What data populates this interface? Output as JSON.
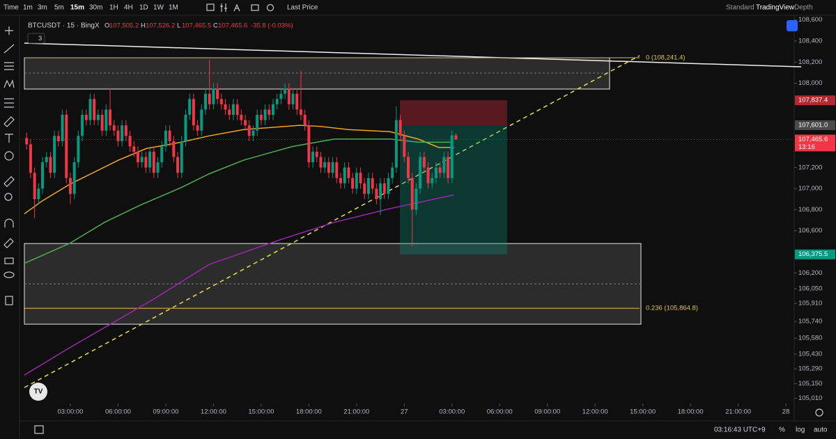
{
  "toolbar": {
    "time": "Time",
    "intervals": [
      "1m",
      "3m",
      "5m",
      "15m",
      "30m",
      "1H",
      "4H",
      "1D",
      "1W",
      "1M"
    ],
    "price_source": "Last Price",
    "right": [
      "Standard",
      "TradingView",
      "Depth"
    ]
  },
  "legend": {
    "symbol": "BTCUSDT · 15 · BingX",
    "ohlc": [
      {
        "key": "O",
        "value": "107,505.2"
      },
      {
        "key": "H",
        "value": "107,526.2"
      },
      {
        "key": "L",
        "value": "107,465.5"
      },
      {
        "key": "C",
        "value": "107,465.6"
      }
    ],
    "change": "-35.8 (-0.03%)",
    "indicator_count": "3"
  },
  "chart_data": {
    "type": "candlestick",
    "candles": [
      [
        107480,
        107530,
        107370,
        107420
      ],
      [
        107420,
        107470,
        107100,
        107150
      ],
      [
        107150,
        107200,
        106720,
        106900
      ],
      [
        106900,
        107050,
        106850,
        107000
      ],
      [
        107000,
        107300,
        106950,
        107250
      ],
      [
        107250,
        107350,
        107200,
        107300
      ],
      [
        107300,
        107350,
        107100,
        107150
      ],
      [
        107150,
        107550,
        107100,
        107500
      ],
      [
        107500,
        107550,
        107400,
        107450
      ],
      [
        107450,
        107750,
        107400,
        107700
      ],
      [
        107700,
        107750,
        107050,
        107100
      ],
      [
        107100,
        107150,
        106850,
        106950
      ],
      [
        106950,
        107300,
        106900,
        107250
      ],
      [
        107250,
        107550,
        107200,
        107500
      ],
      [
        107500,
        107750,
        107450,
        107700
      ],
      [
        107700,
        107750,
        107600,
        107650
      ],
      [
        107650,
        107900,
        107600,
        107850
      ],
      [
        107850,
        107900,
        107600,
        107650
      ],
      [
        107650,
        107750,
        107600,
        107700
      ],
      [
        107700,
        107750,
        107500,
        107550
      ],
      [
        107550,
        107800,
        107500,
        107750
      ],
      [
        107750,
        107950,
        107550,
        107600
      ],
      [
        107600,
        107650,
        107500,
        107550
      ],
      [
        107550,
        107600,
        107400,
        107450
      ],
      [
        107450,
        107650,
        107400,
        107600
      ],
      [
        107600,
        107650,
        107450,
        107500
      ],
      [
        107500,
        107550,
        107350,
        107400
      ],
      [
        107400,
        107450,
        107300,
        107350
      ],
      [
        107350,
        107400,
        107200,
        107250
      ],
      [
        107250,
        107350,
        107200,
        107300
      ],
      [
        107300,
        107350,
        107150,
        107200
      ],
      [
        107200,
        107400,
        107150,
        107350
      ],
      [
        107350,
        107400,
        107100,
        107150
      ],
      [
        107150,
        107300,
        107100,
        107250
      ],
      [
        107250,
        107450,
        107200,
        107400
      ],
      [
        107400,
        107600,
        107350,
        107550
      ],
      [
        107550,
        107600,
        107400,
        107450
      ],
      [
        107450,
        107500,
        107250,
        107300
      ],
      [
        107300,
        107350,
        107100,
        107150
      ],
      [
        107150,
        107500,
        107100,
        107450
      ],
      [
        107450,
        107750,
        107400,
        107700
      ],
      [
        107700,
        107900,
        107650,
        107850
      ],
      [
        107850,
        107900,
        107550,
        107600
      ],
      [
        107600,
        107650,
        107500,
        107550
      ],
      [
        107550,
        107800,
        107500,
        107750
      ],
      [
        107750,
        107950,
        107700,
        107900
      ],
      [
        107900,
        108220,
        107750,
        107800
      ],
      [
        107800,
        108000,
        107750,
        107950
      ],
      [
        107950,
        108000,
        107800,
        107850
      ],
      [
        107850,
        107900,
        107750,
        107800
      ],
      [
        107800,
        107850,
        107700,
        107750
      ],
      [
        107750,
        107800,
        107650,
        107700
      ],
      [
        107700,
        107850,
        107650,
        107800
      ],
      [
        107800,
        107850,
        107650,
        107700
      ],
      [
        107700,
        107750,
        107600,
        107650
      ],
      [
        107650,
        107700,
        107550,
        107600
      ],
      [
        107600,
        107650,
        107450,
        107500
      ],
      [
        107500,
        107600,
        107450,
        107550
      ],
      [
        107550,
        107750,
        107500,
        107700
      ],
      [
        107700,
        107750,
        107600,
        107650
      ],
      [
        107650,
        107800,
        107600,
        107750
      ],
      [
        107750,
        107800,
        107650,
        107700
      ],
      [
        107700,
        107850,
        107650,
        107800
      ],
      [
        107800,
        107900,
        107750,
        107850
      ],
      [
        107850,
        107950,
        107800,
        107900
      ],
      [
        107900,
        108000,
        107850,
        107950
      ],
      [
        107950,
        108000,
        107750,
        107800
      ],
      [
        107800,
        107950,
        107750,
        107900
      ],
      [
        107900,
        107950,
        107700,
        107750
      ],
      [
        107750,
        108120,
        107650,
        107700
      ],
      [
        107700,
        107750,
        107550,
        107600
      ],
      [
        107600,
        107650,
        107200,
        107250
      ],
      [
        107250,
        107400,
        107200,
        107350
      ],
      [
        107350,
        107400,
        107250,
        107300
      ],
      [
        107300,
        107350,
        107150,
        107200
      ],
      [
        107200,
        107300,
        107150,
        107250
      ],
      [
        107250,
        107300,
        107100,
        107150
      ],
      [
        107150,
        107300,
        107100,
        107250
      ],
      [
        107250,
        107300,
        107050,
        107100
      ],
      [
        107100,
        107150,
        107000,
        107050
      ],
      [
        107050,
        107250,
        107000,
        107200
      ],
      [
        107200,
        107250,
        107050,
        107100
      ],
      [
        107100,
        107150,
        106950,
        107000
      ],
      [
        107000,
        107200,
        106950,
        107150
      ],
      [
        107150,
        107200,
        107000,
        107050
      ],
      [
        107050,
        107100,
        106900,
        106950
      ],
      [
        106950,
        107150,
        106900,
        107100
      ],
      [
        107100,
        107150,
        106950,
        107000
      ],
      [
        107000,
        107050,
        106850,
        106900
      ],
      [
        106900,
        107100,
        106750,
        107050
      ],
      [
        107050,
        107100,
        106900,
        106950
      ],
      [
        106950,
        107150,
        106900,
        107100
      ],
      [
        107100,
        107250,
        107050,
        107200
      ],
      [
        107200,
        107780,
        107150,
        107650
      ],
      [
        107650,
        107700,
        107450,
        107500
      ],
      [
        107500,
        107550,
        107250,
        107300
      ],
      [
        107300,
        107350,
        107050,
        107100
      ],
      [
        107100,
        107150,
        106450,
        106800
      ],
      [
        106800,
        107050,
        106750,
        107000
      ],
      [
        107000,
        107350,
        106950,
        107300
      ],
      [
        107300,
        107350,
        107150,
        107200
      ],
      [
        107200,
        107250,
        107000,
        107050
      ],
      [
        107050,
        107150,
        107000,
        107100
      ],
      [
        107100,
        107250,
        107050,
        107200
      ],
      [
        107200,
        107250,
        107100,
        107150
      ],
      [
        107150,
        107350,
        107100,
        107300
      ],
      [
        107300,
        107350,
        107050,
        107100
      ],
      [
        107100,
        107550,
        107050,
        107505.2
      ],
      [
        107505.2,
        107526.2,
        107465.5,
        107465.6
      ]
    ],
    "colors": {
      "up": "#089981",
      "down": "#f23645"
    },
    "xlim": [
      -1.09,
      193.09
    ],
    "xticks": [
      {
        "value": 11,
        "label": "03:00:00"
      },
      {
        "value": 23,
        "label": "06:00:00"
      },
      {
        "value": 35,
        "label": "09:00:00"
      },
      {
        "value": 47,
        "label": "12:00:00"
      },
      {
        "value": 59,
        "label": "15:00:00"
      },
      {
        "value": 71,
        "label": "18:00:00"
      },
      {
        "value": 83,
        "label": "21:00:00"
      },
      {
        "value": 95,
        "label": "27"
      },
      {
        "value": 107,
        "label": "03:00:00"
      },
      {
        "value": 119,
        "label": "06:00:00"
      },
      {
        "value": 131,
        "label": "09:00:00"
      },
      {
        "value": 143,
        "label": "12:00:00"
      },
      {
        "value": 155,
        "label": "15:00:00"
      },
      {
        "value": 167,
        "label": "18:00:00"
      },
      {
        "value": 179,
        "label": "21:00:00"
      },
      {
        "value": 191,
        "label": "28"
      }
    ],
    "ylim": [
      104961,
      108644
    ],
    "yticks": [
      {
        "value": 108600,
        "label": "108,600"
      },
      {
        "value": 108400,
        "label": "108,400"
      },
      {
        "value": 108200,
        "label": "108,200"
      },
      {
        "value": 108000,
        "label": "108,000"
      },
      {
        "value": 107200,
        "label": "107,200"
      },
      {
        "value": 107000,
        "label": "107,000"
      },
      {
        "value": 106800,
        "label": "106,800"
      },
      {
        "value": 106600,
        "label": "106,600"
      },
      {
        "value": 106200,
        "label": "106,200"
      },
      {
        "value": 106050,
        "label": "106,050"
      },
      {
        "value": 105910,
        "label": "105,910"
      },
      {
        "value": 105740,
        "label": "105,740"
      },
      {
        "value": 105580,
        "label": "105,580"
      },
      {
        "value": 105430,
        "label": "105,430"
      },
      {
        "value": 105290,
        "label": "105,290"
      },
      {
        "value": 105150,
        "label": "105,150"
      },
      {
        "value": 105010,
        "label": "105,010"
      }
    ],
    "overlays": [
      {
        "color": "#f5a623",
        "x": [
          -0.6,
          3.8,
          10.8,
          23.1,
          30.1,
          38.9,
          45.9,
          54.6,
          68.7,
          73.9,
          80.9,
          91.4,
          98.5,
          103.7,
          107.5
        ],
        "values": [
          106760,
          106880,
          107040,
          107270,
          107380,
          107440,
          107500,
          107560,
          107600,
          107590,
          107560,
          107540,
          107470,
          107390,
          107390
        ]
      },
      {
        "color": "#4caf50",
        "x": [
          -0.6,
          10.8,
          19.6,
          28.4,
          38.9,
          45.9,
          54.6,
          66.9,
          77.4,
          91.4,
          98.5,
          107.2
        ],
        "values": [
          106290,
          106480,
          106680,
          106840,
          107010,
          107140,
          107270,
          107400,
          107470,
          107470,
          107440,
          107440
        ]
      },
      {
        "color": "#9c27b0",
        "x": [
          -0.6,
          10.8,
          31.9,
          45.9,
          63.4,
          77.4,
          91.4,
          107.5
        ],
        "values": [
          105230,
          105490,
          105950,
          106280,
          106510,
          106680,
          106810,
          106940
        ]
      }
    ],
    "levels": [
      {
        "value": 108241.4,
        "label": "0 (108,241.4)",
        "color": "#e3c441"
      },
      {
        "value": 105864.8,
        "label": "0.236 (105,864.8)",
        "color": "#e3c441"
      }
    ],
    "price_labels": [
      {
        "value": 107837.4,
        "label": "107,837.4",
        "color": "#b22833"
      },
      {
        "value": 107601.0,
        "label": "107,601.0",
        "color": "#4a4a4a"
      },
      {
        "value": 106375.5,
        "label": "106,375.5",
        "color": "#089981"
      }
    ],
    "last_price": {
      "value": 107465.6,
      "label": "107,465.6",
      "countdown": "13:16",
      "color": "#f23645"
    }
  },
  "footer": {
    "clock": "03:16:43 UTC+9",
    "percent": "%",
    "log": "log",
    "auto": "auto"
  }
}
